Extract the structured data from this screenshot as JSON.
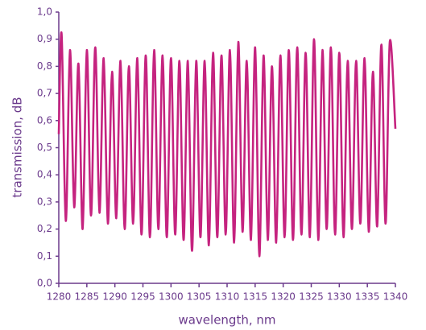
{
  "chart_data": {
    "type": "line",
    "xlabel": "wavelength, nm",
    "ylabel": "transmission, dB",
    "x": [
      1280,
      1280.5,
      1281.25,
      1282,
      1282.75,
      1283.5,
      1284.25,
      1285,
      1285.75,
      1286.5,
      1287.25,
      1288,
      1288.75,
      1289.5,
      1290.25,
      1291,
      1291.75,
      1292.5,
      1293.25,
      1294,
      1294.75,
      1295.5,
      1296.25,
      1297,
      1297.75,
      1298.5,
      1299.25,
      1300,
      1300.75,
      1301.5,
      1302.25,
      1303,
      1303.75,
      1304.5,
      1305.25,
      1306,
      1306.75,
      1307.5,
      1308.25,
      1309,
      1309.75,
      1310.5,
      1311.25,
      1312,
      1312.75,
      1313.5,
      1314.25,
      1315,
      1315.75,
      1316.5,
      1317.25,
      1318,
      1318.75,
      1319.5,
      1320.25,
      1321,
      1321.75,
      1322.5,
      1323.25,
      1324,
      1324.75,
      1325.5,
      1326.25,
      1327,
      1327.75,
      1328.5,
      1329.25,
      1330,
      1330.75,
      1331.5,
      1332.25,
      1333,
      1333.75,
      1334.5,
      1335.25,
      1336,
      1336.75,
      1337.5,
      1338.25,
      1339,
      1340
    ],
    "series": [
      {
        "color": "#c5237f",
        "values": [
          0.55,
          0.92,
          0.23,
          0.86,
          0.28,
          0.81,
          0.2,
          0.86,
          0.25,
          0.87,
          0.26,
          0.83,
          0.22,
          0.78,
          0.24,
          0.82,
          0.2,
          0.8,
          0.22,
          0.83,
          0.18,
          0.84,
          0.17,
          0.86,
          0.2,
          0.84,
          0.17,
          0.83,
          0.18,
          0.82,
          0.16,
          0.82,
          0.12,
          0.82,
          0.17,
          0.82,
          0.14,
          0.85,
          0.17,
          0.84,
          0.18,
          0.86,
          0.15,
          0.89,
          0.19,
          0.82,
          0.16,
          0.87,
          0.1,
          0.84,
          0.16,
          0.8,
          0.15,
          0.84,
          0.17,
          0.86,
          0.16,
          0.87,
          0.18,
          0.85,
          0.17,
          0.9,
          0.16,
          0.86,
          0.2,
          0.87,
          0.18,
          0.85,
          0.17,
          0.82,
          0.2,
          0.82,
          0.22,
          0.83,
          0.19,
          0.78,
          0.21,
          0.88,
          0.22,
          0.89,
          0.57
        ]
      }
    ],
    "xlim": [
      1280,
      1340
    ],
    "xticks": [
      1280,
      1285,
      1290,
      1295,
      1300,
      1305,
      1310,
      1315,
      1320,
      1325,
      1330,
      1335,
      1340
    ],
    "ylim": [
      0,
      1
    ],
    "yticks": [
      {
        "value": 0,
        "label": "0,0"
      },
      {
        "value": 0.1,
        "label": "0,1"
      },
      {
        "value": 0.2,
        "label": "0,2"
      },
      {
        "value": 0.3,
        "label": "0,3"
      },
      {
        "value": 0.4,
        "label": "0,4"
      },
      {
        "value": 0.5,
        "label": "0,5"
      },
      {
        "value": 0.6,
        "label": "0,6"
      },
      {
        "value": 0.7,
        "label": "0,7"
      },
      {
        "value": 0.8,
        "label": "0,8"
      },
      {
        "value": 0.9,
        "label": "0,9"
      },
      {
        "value": 1,
        "label": "1,0"
      }
    ],
    "grid": false
  }
}
